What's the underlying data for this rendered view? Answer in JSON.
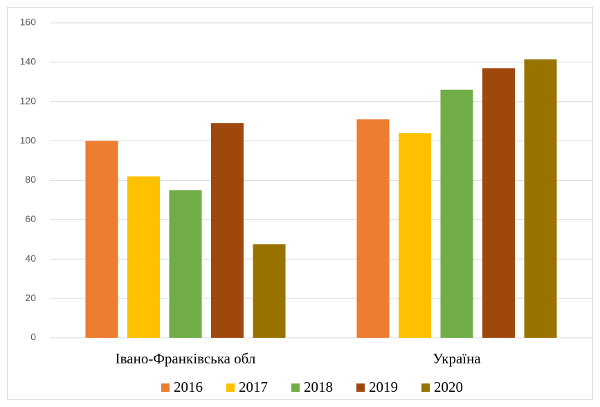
{
  "chart_data": {
    "type": "bar",
    "categories": [
      "Івано-Франківська обл",
      "Україна"
    ],
    "series": [
      {
        "name": "2016",
        "color": "#ed7d31",
        "values": [
          100,
          111
        ]
      },
      {
        "name": "2017",
        "color": "#ffc000",
        "values": [
          82,
          104
        ]
      },
      {
        "name": "2018",
        "color": "#70ad47",
        "values": [
          75,
          126
        ]
      },
      {
        "name": "2019",
        "color": "#9e480e",
        "values": [
          109,
          137
        ]
      },
      {
        "name": "2020",
        "color": "#997300",
        "values": [
          47.5,
          141.5
        ]
      }
    ],
    "ylim": [
      0,
      160
    ],
    "yticks": [
      0,
      20,
      40,
      60,
      80,
      100,
      120,
      140,
      160
    ],
    "grid": true,
    "legend": "bottom"
  }
}
